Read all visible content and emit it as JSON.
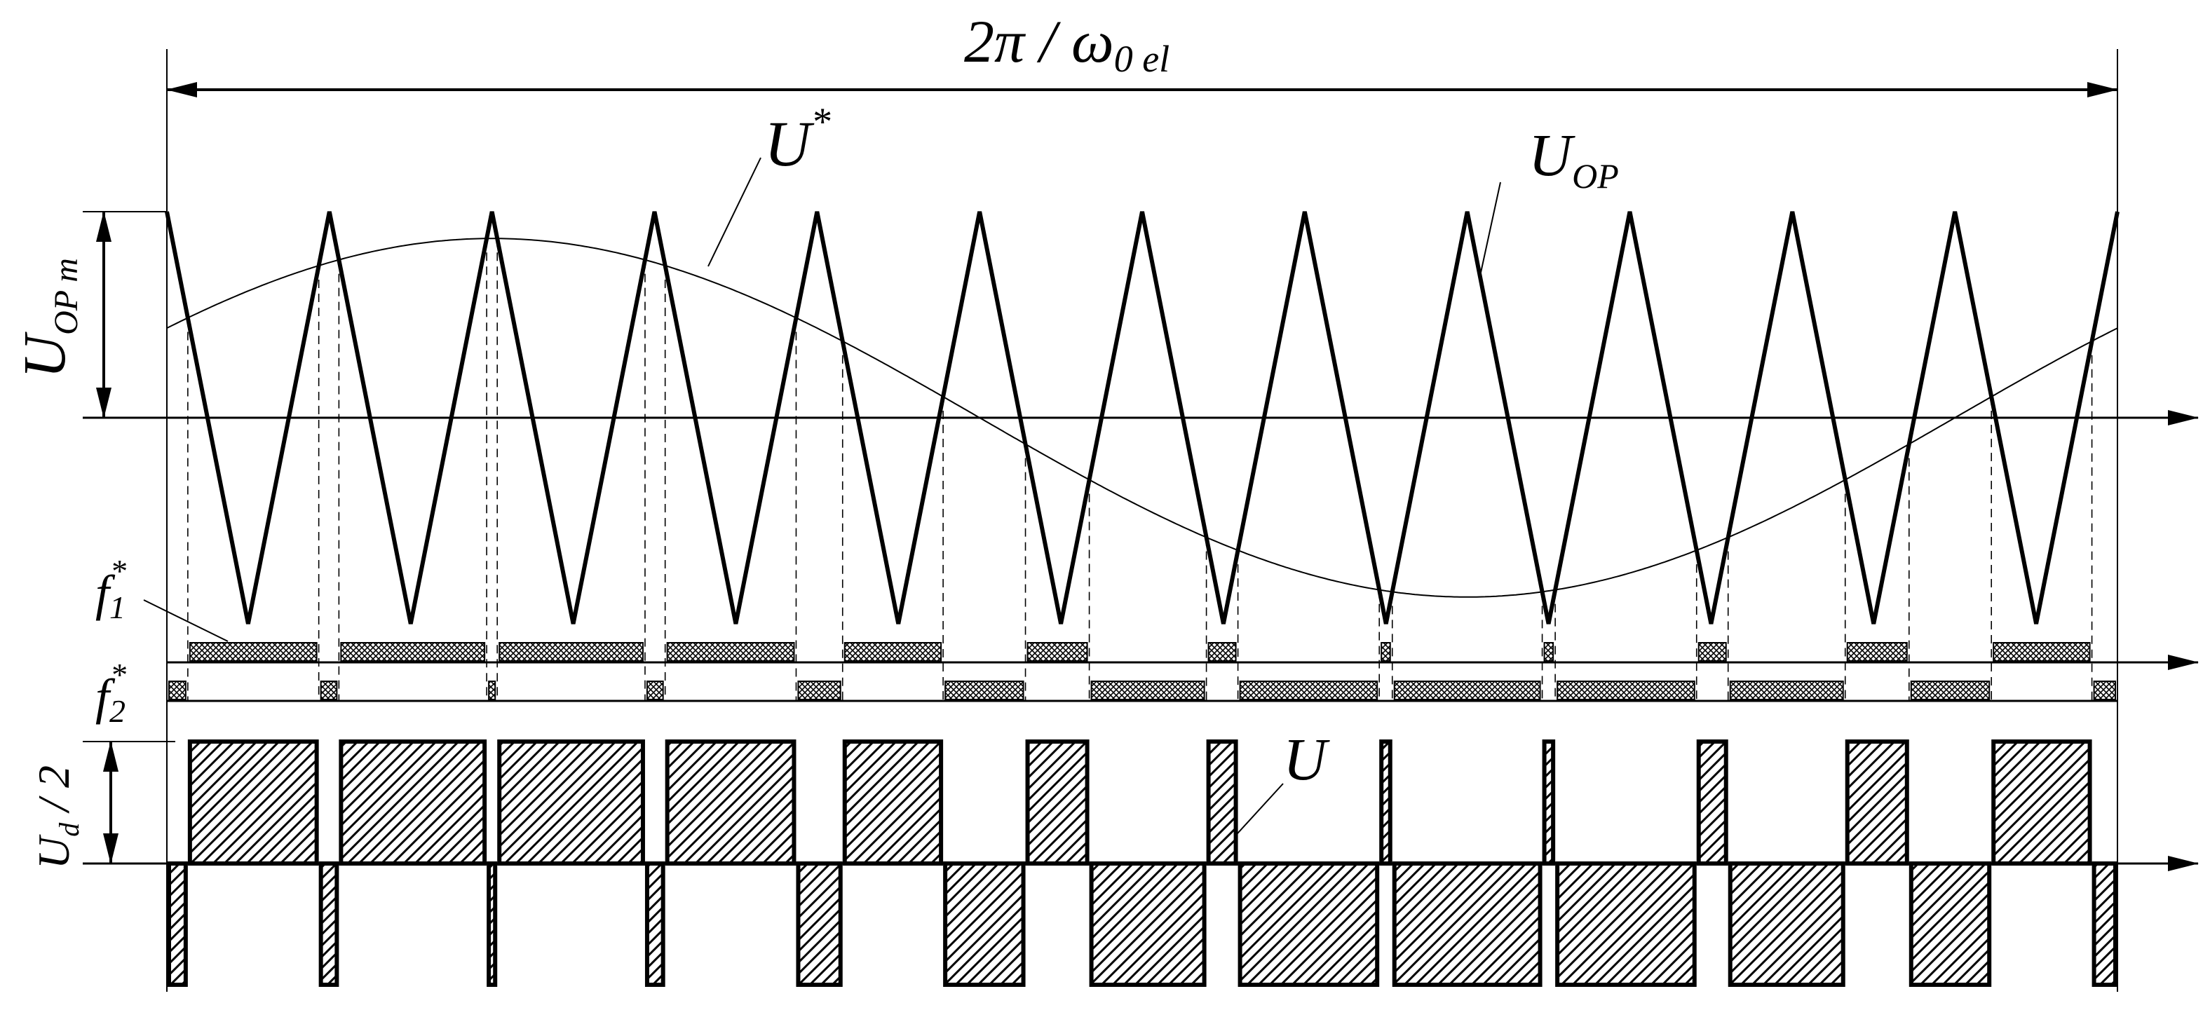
{
  "labels": {
    "period": "2π / ω",
    "period_sub": "0 el",
    "reference": "U",
    "reference_sup": "*",
    "carrier": "U",
    "carrier_sub": "OP",
    "amplitude": "U",
    "amplitude_sub": "OP m",
    "f1": "f",
    "f1_sub": "1",
    "f1_sup": "*",
    "f2": "f",
    "f2_sub": "2",
    "f2_sup": "*",
    "half_dc": "U",
    "half_dc_sub": "d",
    "half_dc_rest": " / 2",
    "output": "U"
  },
  "diagram": {
    "type": "PWM timing diagram",
    "carrier_periods": 12,
    "reference_amplitude_ratio": 0.87,
    "reference_phase_deg": 30,
    "colors": {
      "ink": "#000000",
      "guide": "#000000"
    }
  }
}
